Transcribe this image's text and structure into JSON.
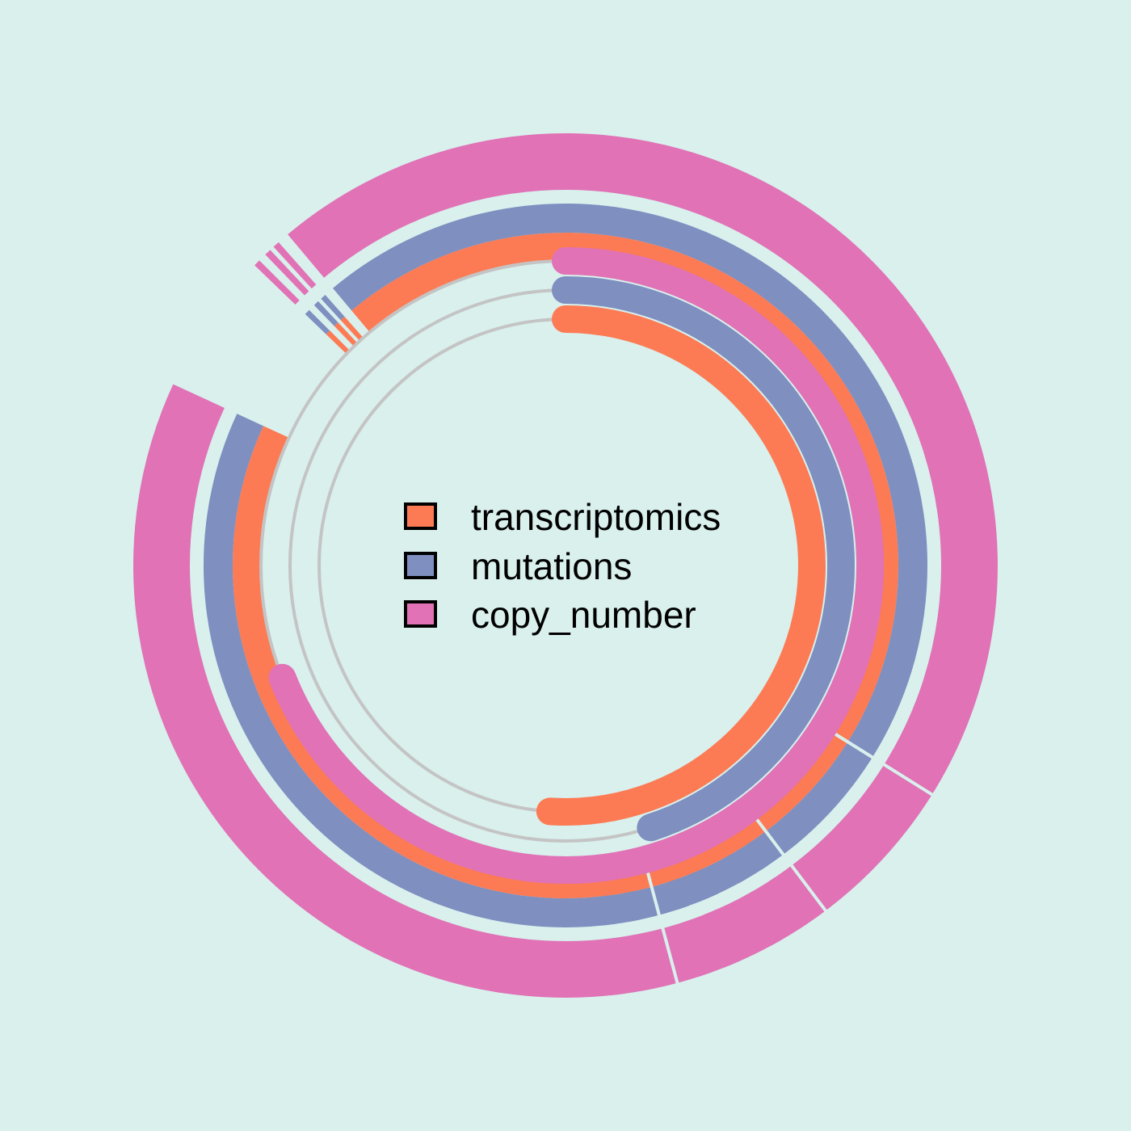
{
  "chart_data": {
    "type": "radial-bar",
    "title": "",
    "series": [
      {
        "name": "transcriptomics",
        "value": 0.51,
        "color": "#fc7b54"
      },
      {
        "name": "mutations",
        "value": 0.45,
        "color": "#7e8fc0"
      },
      {
        "name": "copy_number",
        "value": 0.69,
        "color": "#e072b5"
      }
    ],
    "value_range": [
      0,
      1
    ],
    "outer_ring": {
      "tracks": [
        "transcriptomics",
        "mutations",
        "copy_number"
      ],
      "coverage": 0.93
    },
    "legend": {
      "placement": "center",
      "items": [
        {
          "label": "transcriptomics",
          "color": "#fc7b54"
        },
        {
          "label": "mutations",
          "color": "#7e8fc0"
        },
        {
          "label": "copy_number",
          "color": "#e072b5"
        }
      ]
    }
  }
}
